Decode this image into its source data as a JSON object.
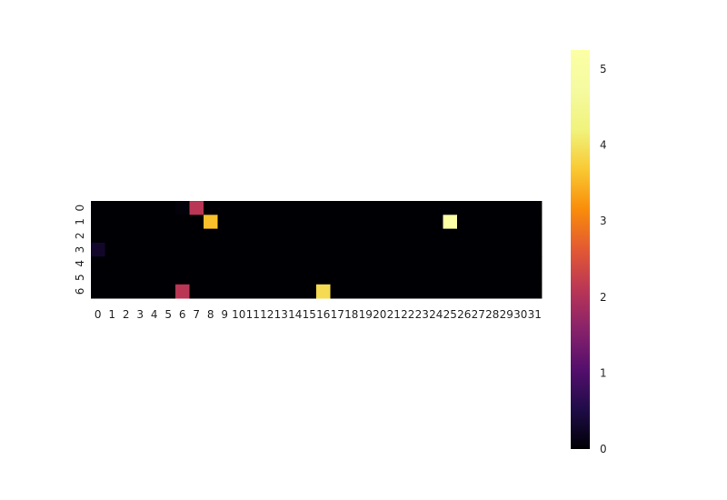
{
  "chart_data": {
    "type": "heatmap",
    "title": "",
    "xlabel": "",
    "ylabel": "",
    "x_tick_labels": [
      "0",
      "1",
      "2",
      "3",
      "4",
      "5",
      "6",
      "7",
      "8",
      "9",
      "10",
      "11",
      "12",
      "13",
      "14",
      "15",
      "16",
      "17",
      "18",
      "19",
      "20",
      "21",
      "22",
      "23",
      "24",
      "25",
      "26",
      "27",
      "28",
      "29",
      "30",
      "31"
    ],
    "y_tick_labels": [
      "0",
      "1",
      "2",
      "3",
      "4",
      "5",
      "6"
    ],
    "colormap": "inferno",
    "vmin": 0,
    "vmax": 5.25,
    "colorbar_ticks": [
      "0",
      "1",
      "2",
      "3",
      "4",
      "5"
    ],
    "colorbar_tick_values": [
      0,
      1,
      2,
      3,
      4,
      5
    ],
    "values": [
      [
        0,
        0,
        0,
        0,
        0,
        0,
        0.05,
        2.1,
        0,
        0,
        0,
        0,
        0,
        0,
        0,
        0,
        0,
        0,
        0,
        0,
        0,
        0,
        0,
        0,
        0,
        0,
        0,
        0,
        0,
        0,
        0,
        0
      ],
      [
        0,
        0,
        0,
        0,
        0,
        0,
        0,
        0,
        3.6,
        0,
        0,
        0,
        0,
        0,
        0,
        0,
        0,
        0,
        0,
        0,
        0,
        0,
        0,
        0,
        0,
        5.25,
        0,
        0,
        0,
        0,
        0,
        0
      ],
      [
        0,
        0,
        0,
        0,
        0,
        0,
        0,
        0,
        0,
        0,
        0,
        0,
        0,
        0,
        0,
        0,
        0,
        0,
        0,
        0,
        0,
        0,
        0,
        0,
        0,
        0,
        0,
        0,
        0,
        0,
        0,
        0
      ],
      [
        0.3,
        0,
        0,
        0,
        0,
        0,
        0,
        0,
        0,
        0,
        0,
        0,
        0,
        0,
        0,
        0,
        0,
        0,
        0,
        0,
        0,
        0,
        0,
        0,
        0,
        0,
        0,
        0,
        0,
        0,
        0,
        0
      ],
      [
        0,
        0,
        0,
        0,
        0,
        0,
        0,
        0,
        0,
        0,
        0,
        0,
        0,
        0,
        0,
        0,
        0,
        0,
        0,
        0,
        0,
        0,
        0,
        0,
        0,
        0,
        0,
        0,
        0,
        0,
        0,
        0
      ],
      [
        0,
        0,
        0,
        0,
        0,
        0,
        0,
        0,
        0,
        0,
        0,
        0,
        0,
        0,
        0,
        0,
        0,
        0,
        0,
        0,
        0,
        0,
        0,
        0,
        0,
        0,
        0,
        0,
        0,
        0,
        0,
        0
      ],
      [
        0,
        0,
        0,
        0,
        0,
        0,
        2.1,
        0,
        0,
        0,
        0,
        0,
        0,
        0,
        0,
        0,
        3.9,
        0,
        0,
        0,
        0,
        0,
        0,
        0,
        0,
        0,
        0,
        0,
        0,
        0,
        0,
        0
      ]
    ]
  }
}
